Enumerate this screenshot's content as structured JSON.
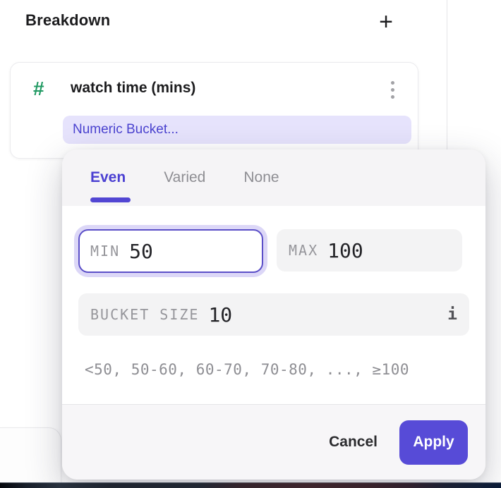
{
  "header": {
    "title": "Breakdown",
    "add_icon": "+"
  },
  "breakdown_card": {
    "type_icon": "#",
    "property_name": "watch time (mins)",
    "menu_icon": "kebab-vertical",
    "bucket_selector_label": "Numeric Bucket..."
  },
  "bucket_popup": {
    "tabs": [
      {
        "label": "Even",
        "active": true
      },
      {
        "label": "Varied",
        "active": false
      },
      {
        "label": "None",
        "active": false
      }
    ],
    "min": {
      "label": "MIN",
      "value": "50"
    },
    "max": {
      "label": "MAX",
      "value": "100"
    },
    "bucket_size": {
      "label": "BUCKET SIZE",
      "value": "10",
      "info_icon": "i"
    },
    "preview": "<50, 50-60, 60-70, 70-80, ..., ≥100",
    "cancel_label": "Cancel",
    "apply_label": "Apply"
  },
  "colors": {
    "accent": "#574bd7",
    "active_tab": "#4b40d2",
    "pill_bg": "#e6e3fc",
    "field_bg": "#f3f3f4",
    "hash_green": "#219a63"
  }
}
